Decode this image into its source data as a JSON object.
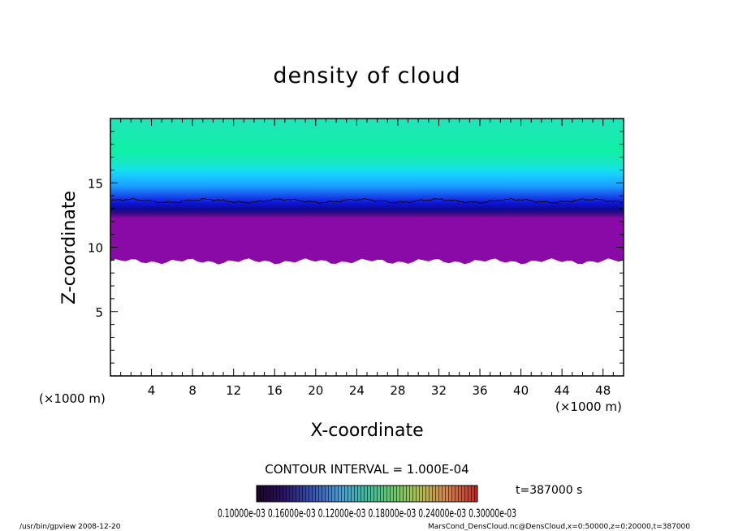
{
  "chart_data": {
    "type": "heatmap",
    "title": "density of cloud",
    "xlabel": "X-coordinate",
    "ylabel": "Z-coordinate",
    "x_unit": "(×1000 m)",
    "y_unit": "(×1000 m)",
    "xlim": [
      0,
      50
    ],
    "ylim": [
      0,
      20
    ],
    "x_ticks": [
      4,
      8,
      12,
      16,
      20,
      24,
      28,
      32,
      36,
      40,
      44,
      48
    ],
    "y_ticks": [
      5,
      10,
      15
    ],
    "contour_interval": "CONTOUR INTERVAL = 1.000E-04",
    "time_label": "t=387000 s",
    "colorbar_labels_text": "0.10000e-03  0.16000e-03  0.12000e-03  0.18000e-03  0.24000e-03  0.30000e-03",
    "footer_left": "/usr/bin/gpview   2008-12-20",
    "footer_right": "MarsCond_DensCloud.nc@DensCloud,x=0:50000,z=0:20000,t=387000",
    "cloud_base_km": 8.9,
    "contour_line_km": 13.6
  }
}
